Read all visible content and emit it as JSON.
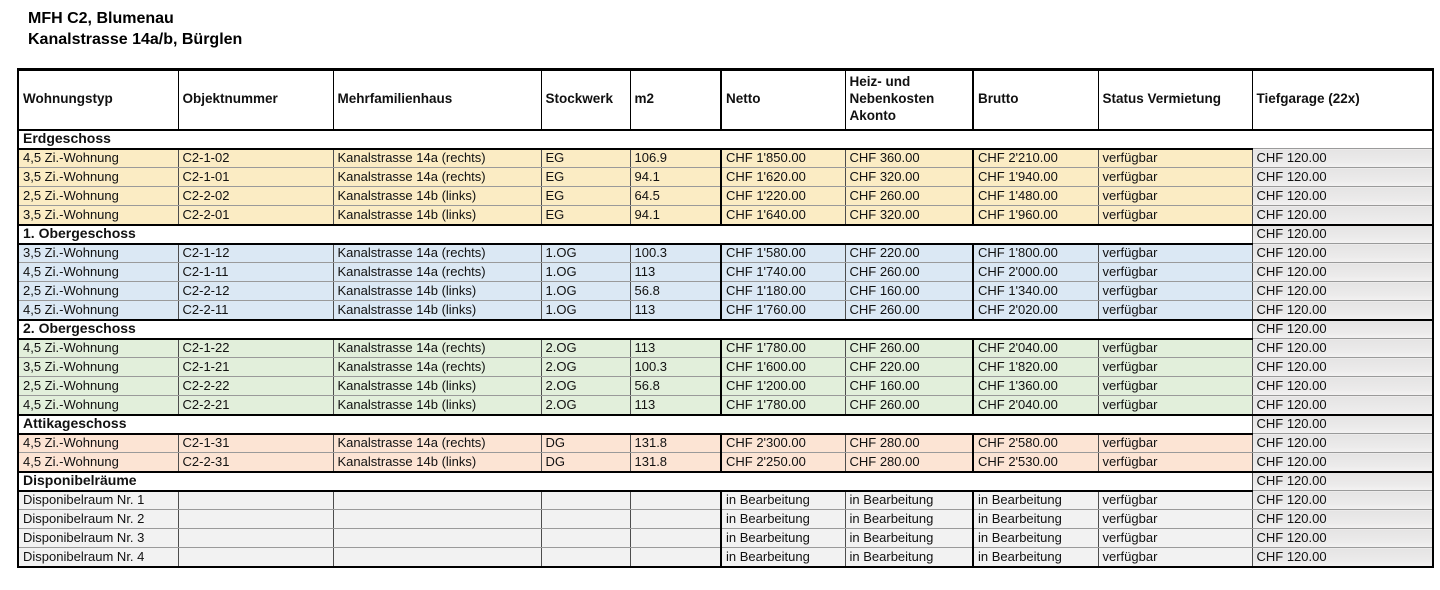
{
  "title": {
    "line1": "MFH C2, Blumenau",
    "line2": "Kanalstrasse 14a/b, Bürglen"
  },
  "table": {
    "columns": [
      "Wohnungstyp",
      "Objektnummer",
      "Mehrfamilienhaus",
      "Stockwerk",
      "m2",
      "Netto",
      "Heiz- und Nebenkosten Akonto",
      "Brutto",
      "Status Vermietung",
      "Tiefgarage (22x)"
    ],
    "colors": {
      "erdgeschoss_fill": "#FBECC4",
      "obergeschoss1_fill": "#DBE8F4",
      "obergeschoss2_fill": "#E2EFDB",
      "attika_fill": "#FCE4D4",
      "disponibel_fill": "#F2F2F2",
      "tiefgarage_column_fill": "#E9E8E8",
      "border_dark": "#000000"
    },
    "sections": [
      {
        "name": "Erdgeschoss",
        "section_tiefgarage": "",
        "fill": "#FBECC4",
        "rows": [
          [
            "4,5 Zi.-Wohnung",
            "C2-1-02",
            "Kanalstrasse 14a (rechts)",
            "EG",
            "106.9",
            "CHF 1'850.00",
            "CHF 360.00",
            "CHF 2'210.00",
            "verfügbar",
            "CHF 120.00"
          ],
          [
            "3,5 Zi.-Wohnung",
            "C2-1-01",
            "Kanalstrasse 14a (rechts)",
            "EG",
            "94.1",
            "CHF 1'620.00",
            "CHF 320.00",
            "CHF 1'940.00",
            "verfügbar",
            "CHF 120.00"
          ],
          [
            "2,5 Zi.-Wohnung",
            "C2-2-02",
            "Kanalstrasse 14b (links)",
            "EG",
            "64.5",
            "CHF 1'220.00",
            "CHF 260.00",
            "CHF 1'480.00",
            "verfügbar",
            "CHF 120.00"
          ],
          [
            "3,5 Zi.-Wohnung",
            "C2-2-01",
            "Kanalstrasse 14b (links)",
            "EG",
            "94.1",
            "CHF 1'640.00",
            "CHF 320.00",
            "CHF 1'960.00",
            "verfügbar",
            "CHF 120.00"
          ]
        ]
      },
      {
        "name": "1. Obergeschoss",
        "section_tiefgarage": "CHF 120.00",
        "fill": "#DBE8F4",
        "rows": [
          [
            "3,5 Zi.-Wohnung",
            "C2-1-12",
            "Kanalstrasse 14a (rechts)",
            "1.OG",
            "100.3",
            "CHF 1'580.00",
            "CHF 220.00",
            "CHF 1'800.00",
            "verfügbar",
            "CHF 120.00"
          ],
          [
            "4,5 Zi.-Wohnung",
            "C2-1-11",
            "Kanalstrasse 14a (rechts)",
            "1.OG",
            "113",
            "CHF 1'740.00",
            "CHF 260.00",
            "CHF 2'000.00",
            "verfügbar",
            "CHF 120.00"
          ],
          [
            "2,5 Zi.-Wohnung",
            "C2-2-12",
            "Kanalstrasse 14b (links)",
            "1.OG",
            "56.8",
            "CHF 1'180.00",
            "CHF 160.00",
            "CHF 1'340.00",
            "verfügbar",
            "CHF 120.00"
          ],
          [
            "4,5 Zi.-Wohnung",
            "C2-2-11",
            "Kanalstrasse 14b (links)",
            "1.OG",
            "113",
            "CHF 1'760.00",
            "CHF 260.00",
            "CHF 2'020.00",
            "verfügbar",
            "CHF 120.00"
          ]
        ]
      },
      {
        "name": "2. Obergeschoss",
        "section_tiefgarage": "CHF 120.00",
        "fill": "#E2EFDB",
        "rows": [
          [
            "4,5 Zi.-Wohnung",
            "C2-1-22",
            "Kanalstrasse 14a (rechts)",
            "2.OG",
            "113",
            "CHF 1'780.00",
            "CHF 260.00",
            "CHF 2'040.00",
            "verfügbar",
            "CHF 120.00"
          ],
          [
            "3,5 Zi.-Wohnung",
            "C2-1-21",
            "Kanalstrasse 14a (rechts)",
            "2.OG",
            "100.3",
            "CHF 1'600.00",
            "CHF 220.00",
            "CHF 1'820.00",
            "verfügbar",
            "CHF 120.00"
          ],
          [
            "2,5 Zi.-Wohnung",
            "C2-2-22",
            "Kanalstrasse 14b (links)",
            "2.OG",
            "56.8",
            "CHF 1'200.00",
            "CHF 160.00",
            "CHF 1'360.00",
            "verfügbar",
            "CHF 120.00"
          ],
          [
            "4,5 Zi.-Wohnung",
            "C2-2-21",
            "Kanalstrasse 14b (links)",
            "2.OG",
            "113",
            "CHF 1'780.00",
            "CHF 260.00",
            "CHF 2'040.00",
            "verfügbar",
            "CHF 120.00"
          ]
        ]
      },
      {
        "name": "Attikageschoss",
        "section_tiefgarage": "CHF 120.00",
        "fill": "#FCE4D4",
        "rows": [
          [
            "4,5 Zi.-Wohnung",
            "C2-1-31",
            "Kanalstrasse 14a (rechts)",
            "DG",
            "131.8",
            "CHF 2'300.00",
            "CHF 280.00",
            "CHF 2'580.00",
            "verfügbar",
            "CHF 120.00"
          ],
          [
            "4,5 Zi.-Wohnung",
            "C2-2-31",
            "Kanalstrasse 14b (links)",
            "DG",
            "131.8",
            "CHF 2'250.00",
            "CHF 280.00",
            "CHF 2'530.00",
            "verfügbar",
            "CHF 120.00"
          ]
        ]
      },
      {
        "name": "Disponibelräume",
        "section_tiefgarage": "CHF 120.00",
        "fill": "#F2F2F2",
        "rows": [
          [
            "Disponibelraum Nr. 1",
            "",
            "",
            "",
            "",
            "in Bearbeitung",
            "in Bearbeitung",
            "in Bearbeitung",
            "verfügbar",
            "CHF 120.00"
          ],
          [
            "Disponibelraum Nr. 2",
            "",
            "",
            "",
            "",
            "in Bearbeitung",
            "in Bearbeitung",
            "in Bearbeitung",
            "verfügbar",
            "CHF 120.00"
          ],
          [
            "Disponibelraum Nr. 3",
            "",
            "",
            "",
            "",
            "in Bearbeitung",
            "in Bearbeitung",
            "in Bearbeitung",
            "verfügbar",
            "CHF 120.00"
          ],
          [
            "Disponibelraum Nr. 4",
            "",
            "",
            "",
            "",
            "in Bearbeitung",
            "in Bearbeitung",
            "in Bearbeitung",
            "verfügbar",
            "CHF 120.00"
          ]
        ]
      }
    ]
  }
}
